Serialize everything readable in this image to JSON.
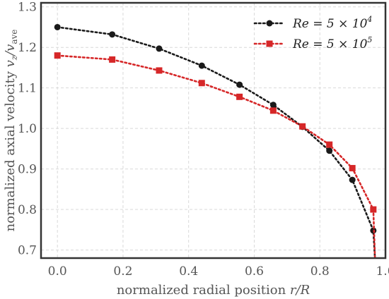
{
  "chart_data": {
    "type": "line",
    "xlabel_text": "normalized radial position ",
    "xlabel_math": "r/R",
    "ylabel_text": "normalized axial velocity ",
    "ylabel_math": "v",
    "ylabel_sub1": "z",
    "ylabel_slash": "/v",
    "ylabel_sub2": "ave",
    "xlim": [
      -0.05,
      1.0
    ],
    "ylim": [
      0.68,
      1.31
    ],
    "xticks": [
      "0.0",
      "0.2",
      "0.4",
      "0.6",
      "0.8",
      "1.0"
    ],
    "yticks": [
      "0.7",
      "0.8",
      "0.9",
      "1.0",
      "1.1",
      "1.2",
      "1.3"
    ],
    "grid": true,
    "legend_position": "top-right",
    "series": [
      {
        "name": "Re = 5 × 10",
        "name_exp": "4",
        "color": "#1a1a1a",
        "marker": "circle",
        "x": [
          0.0,
          0.167,
          0.31,
          0.44,
          0.555,
          0.658,
          0.747,
          0.829,
          0.899,
          0.963,
          0.968
        ],
        "y": [
          1.25,
          1.232,
          1.197,
          1.155,
          1.108,
          1.058,
          1.004,
          0.945,
          0.873,
          0.748,
          0.68
        ]
      },
      {
        "name": "Re = 5 × 10",
        "name_exp": "5",
        "color": "#d62728",
        "marker": "square",
        "x": [
          0.0,
          0.167,
          0.31,
          0.44,
          0.555,
          0.658,
          0.747,
          0.829,
          0.899,
          0.963,
          0.968
        ],
        "y": [
          1.18,
          1.17,
          1.143,
          1.112,
          1.078,
          1.044,
          1.005,
          0.96,
          0.902,
          0.8,
          0.68
        ]
      }
    ]
  }
}
